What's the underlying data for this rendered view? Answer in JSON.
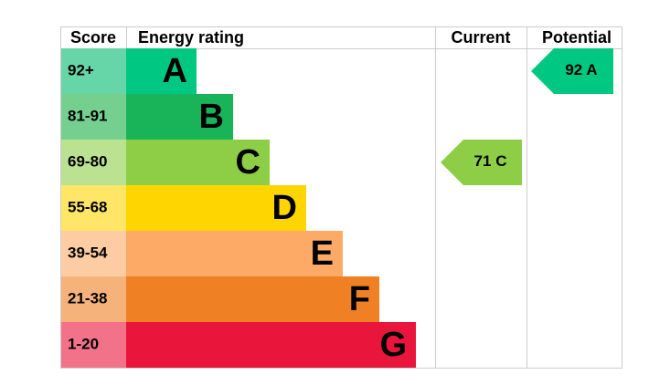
{
  "header": {
    "score": "Score",
    "rating": "Energy rating",
    "current": "Current",
    "potential": "Potential"
  },
  "rows": [
    {
      "score": "92+",
      "letter": "A",
      "color": "#00c781",
      "light": "#66d5a7"
    },
    {
      "score": "81-91",
      "letter": "B",
      "color": "#19b459",
      "light": "#75d08f"
    },
    {
      "score": "69-80",
      "letter": "C",
      "color": "#8dce46",
      "light": "#bae290"
    },
    {
      "score": "55-68",
      "letter": "D",
      "color": "#ffd500",
      "light": "#ffe666"
    },
    {
      "score": "39-54",
      "letter": "E",
      "color": "#fcaa65",
      "light": "#fdcca3"
    },
    {
      "score": "21-38",
      "letter": "F",
      "color": "#ef8023",
      "light": "#f5b37b"
    },
    {
      "score": "1-20",
      "letter": "G",
      "color": "#e9153b",
      "light": "#f27389"
    }
  ],
  "current": {
    "value": 71,
    "letter": "C"
  },
  "potential": {
    "value": 92,
    "letter": "A"
  }
}
